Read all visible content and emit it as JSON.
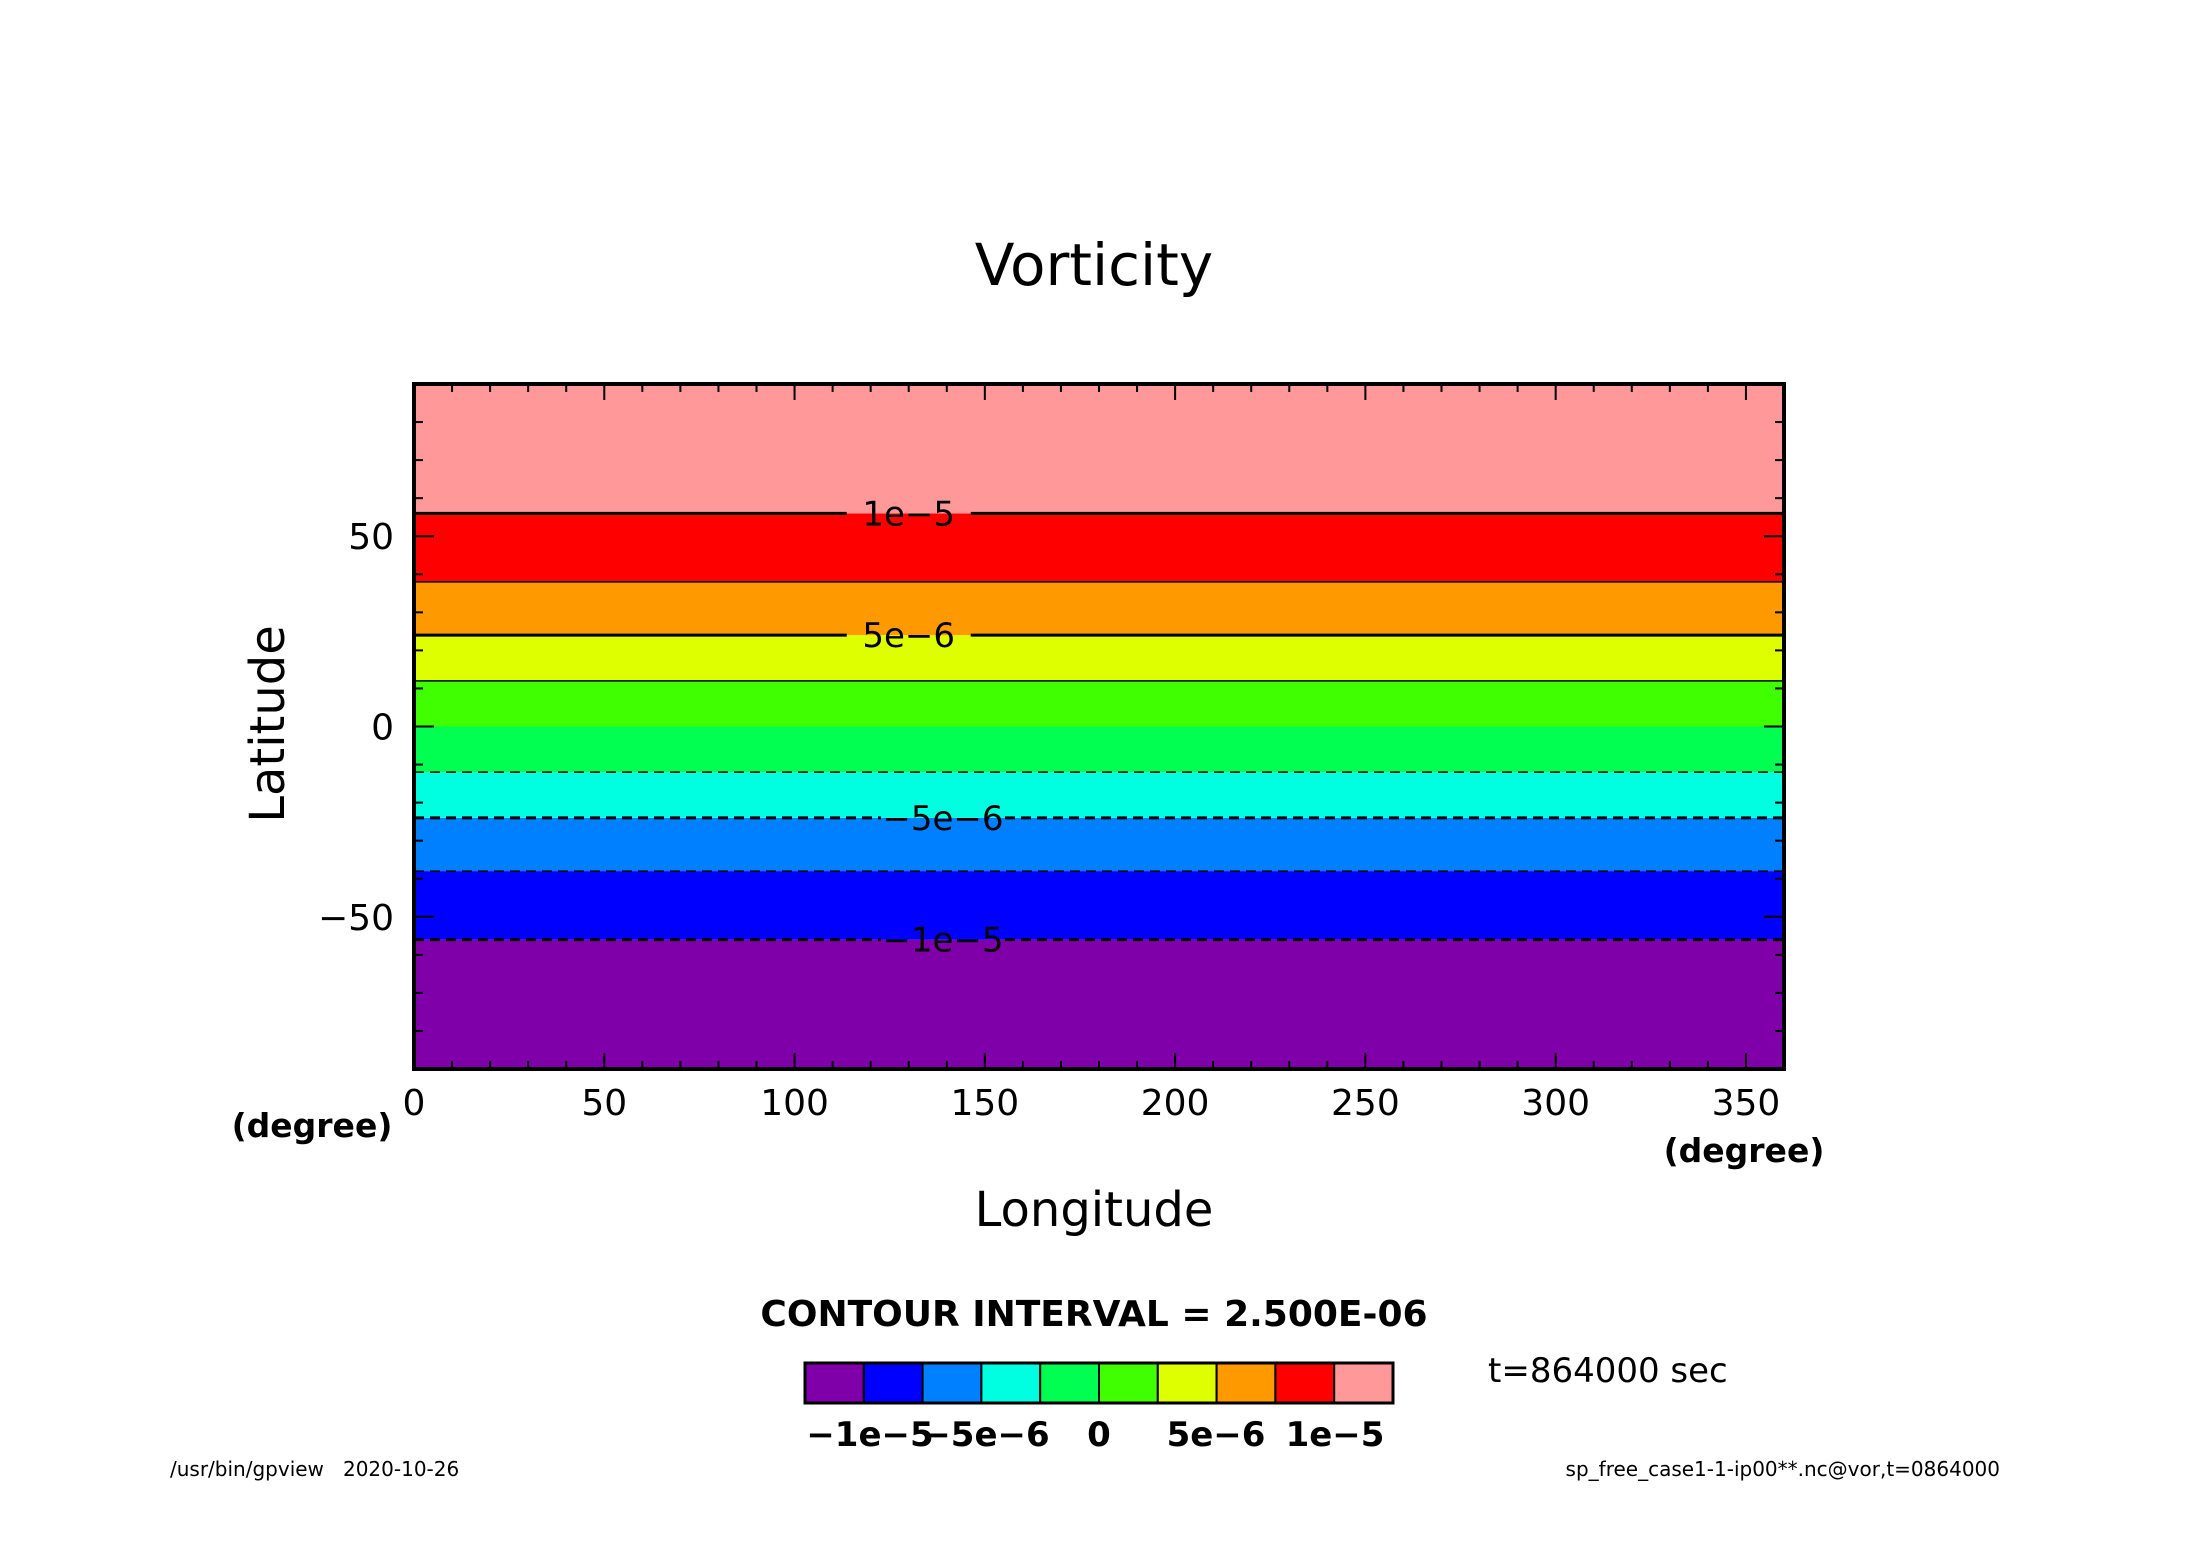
{
  "chart_data": {
    "type": "heatmap",
    "title": "Vorticity",
    "xlabel": "Longitude",
    "ylabel": "Latitude",
    "x_units": "(degree)",
    "y_units": "(degree)",
    "xlim": [
      0,
      360
    ],
    "ylim": [
      -90,
      90
    ],
    "x_ticks": [
      0,
      50,
      100,
      150,
      200,
      250,
      300,
      350
    ],
    "y_ticks": [
      -50,
      0,
      50
    ],
    "contour_interval_label": "CONTOUR INTERVAL = 2.500E-06",
    "contour_interval": 2.5e-06,
    "time_label": "t=864000 sec",
    "bands": [
      {
        "lat_min": -90,
        "lat_max": -56,
        "color": "#7f00a8"
      },
      {
        "lat_min": -56,
        "lat_max": -38,
        "color": "#0000ff"
      },
      {
        "lat_min": -38,
        "lat_max": -24,
        "color": "#0080ff"
      },
      {
        "lat_min": -24,
        "lat_max": -12,
        "color": "#00ffe0"
      },
      {
        "lat_min": -12,
        "lat_max": 0,
        "color": "#00ff50"
      },
      {
        "lat_min": 0,
        "lat_max": 12,
        "color": "#40ff00"
      },
      {
        "lat_min": 12,
        "lat_max": 24,
        "color": "#ddff00"
      },
      {
        "lat_min": 24,
        "lat_max": 38,
        "color": "#ff9900"
      },
      {
        "lat_min": 38,
        "lat_max": 56,
        "color": "#ff0000"
      },
      {
        "lat_min": 56,
        "lat_max": 90,
        "color": "#ff9999"
      }
    ],
    "contours": [
      {
        "lat": 56,
        "value": 1e-05,
        "label": "1e-5",
        "style": "solid",
        "major": true,
        "label_lon": 130
      },
      {
        "lat": 38,
        "value": 7.5e-06,
        "label": "",
        "style": "solid",
        "major": false
      },
      {
        "lat": 24,
        "value": 5e-06,
        "label": "5e-6",
        "style": "solid",
        "major": true,
        "label_lon": 130
      },
      {
        "lat": 12,
        "value": 2.5e-06,
        "label": "",
        "style": "solid",
        "major": false
      },
      {
        "lat": -12,
        "value": -2.5e-06,
        "label": "",
        "style": "dashed",
        "major": false
      },
      {
        "lat": -24,
        "value": -5e-06,
        "label": "-5e-6",
        "style": "dashed",
        "major": true,
        "label_lon": 139
      },
      {
        "lat": -38,
        "value": -7.5e-06,
        "label": "",
        "style": "dashed",
        "major": false
      },
      {
        "lat": -56,
        "value": -1e-05,
        "label": "-1e-5",
        "style": "dashed",
        "major": true,
        "label_lon": 139
      }
    ],
    "colorbar": {
      "colors": [
        "#7f00a8",
        "#0000ff",
        "#0080ff",
        "#00ffe0",
        "#00ff50",
        "#40ff00",
        "#ddff00",
        "#ff9900",
        "#ff0000",
        "#ff9999"
      ],
      "labels": [
        "−1e−5",
        "−5e−6",
        "0",
        "5e−6",
        "1e−5"
      ]
    }
  },
  "footer": {
    "left": "/usr/bin/gpview   2020-10-26",
    "right": "sp_free_case1-1-ip00**.nc@vor,t=0864000"
  }
}
